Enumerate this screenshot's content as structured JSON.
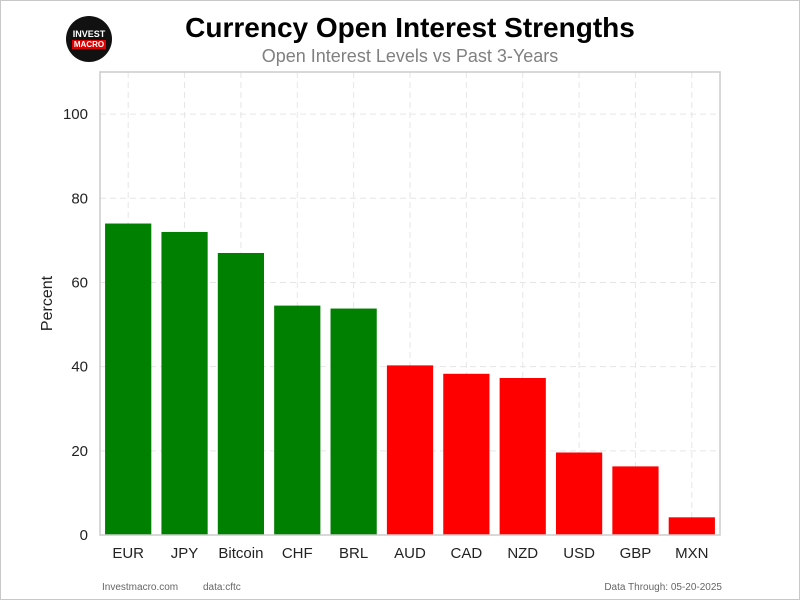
{
  "logo": {
    "line1": "INVEST",
    "line2": "MACRO"
  },
  "title": "Currency Open Interest Strengths",
  "subtitle": "Open Interest Levels vs Past 3-Years",
  "footer": {
    "site": "Investmacro.com",
    "source": "data:cftc",
    "through": "Data Through: 05-20-2025"
  },
  "chart_data": {
    "type": "bar",
    "title": "Currency Open Interest Strengths",
    "subtitle": "Open Interest Levels vs Past 3-Years",
    "xlabel": "",
    "ylabel": "Percent",
    "ylim": [
      0,
      110
    ],
    "yticks": [
      0,
      20,
      40,
      60,
      80,
      100
    ],
    "grid": true,
    "categories": [
      "EUR",
      "JPY",
      "Bitcoin",
      "CHF",
      "BRL",
      "AUD",
      "CAD",
      "NZD",
      "USD",
      "GBP",
      "MXN"
    ],
    "values": [
      74,
      72,
      67,
      54.5,
      53.8,
      40.3,
      38.3,
      37.3,
      19.6,
      16.3,
      4.2
    ],
    "colors": {
      "above": "#008000",
      "below": "#ff0000",
      "threshold": 50,
      "grid": "#e6e6e6",
      "axis": "#cccccc"
    }
  }
}
